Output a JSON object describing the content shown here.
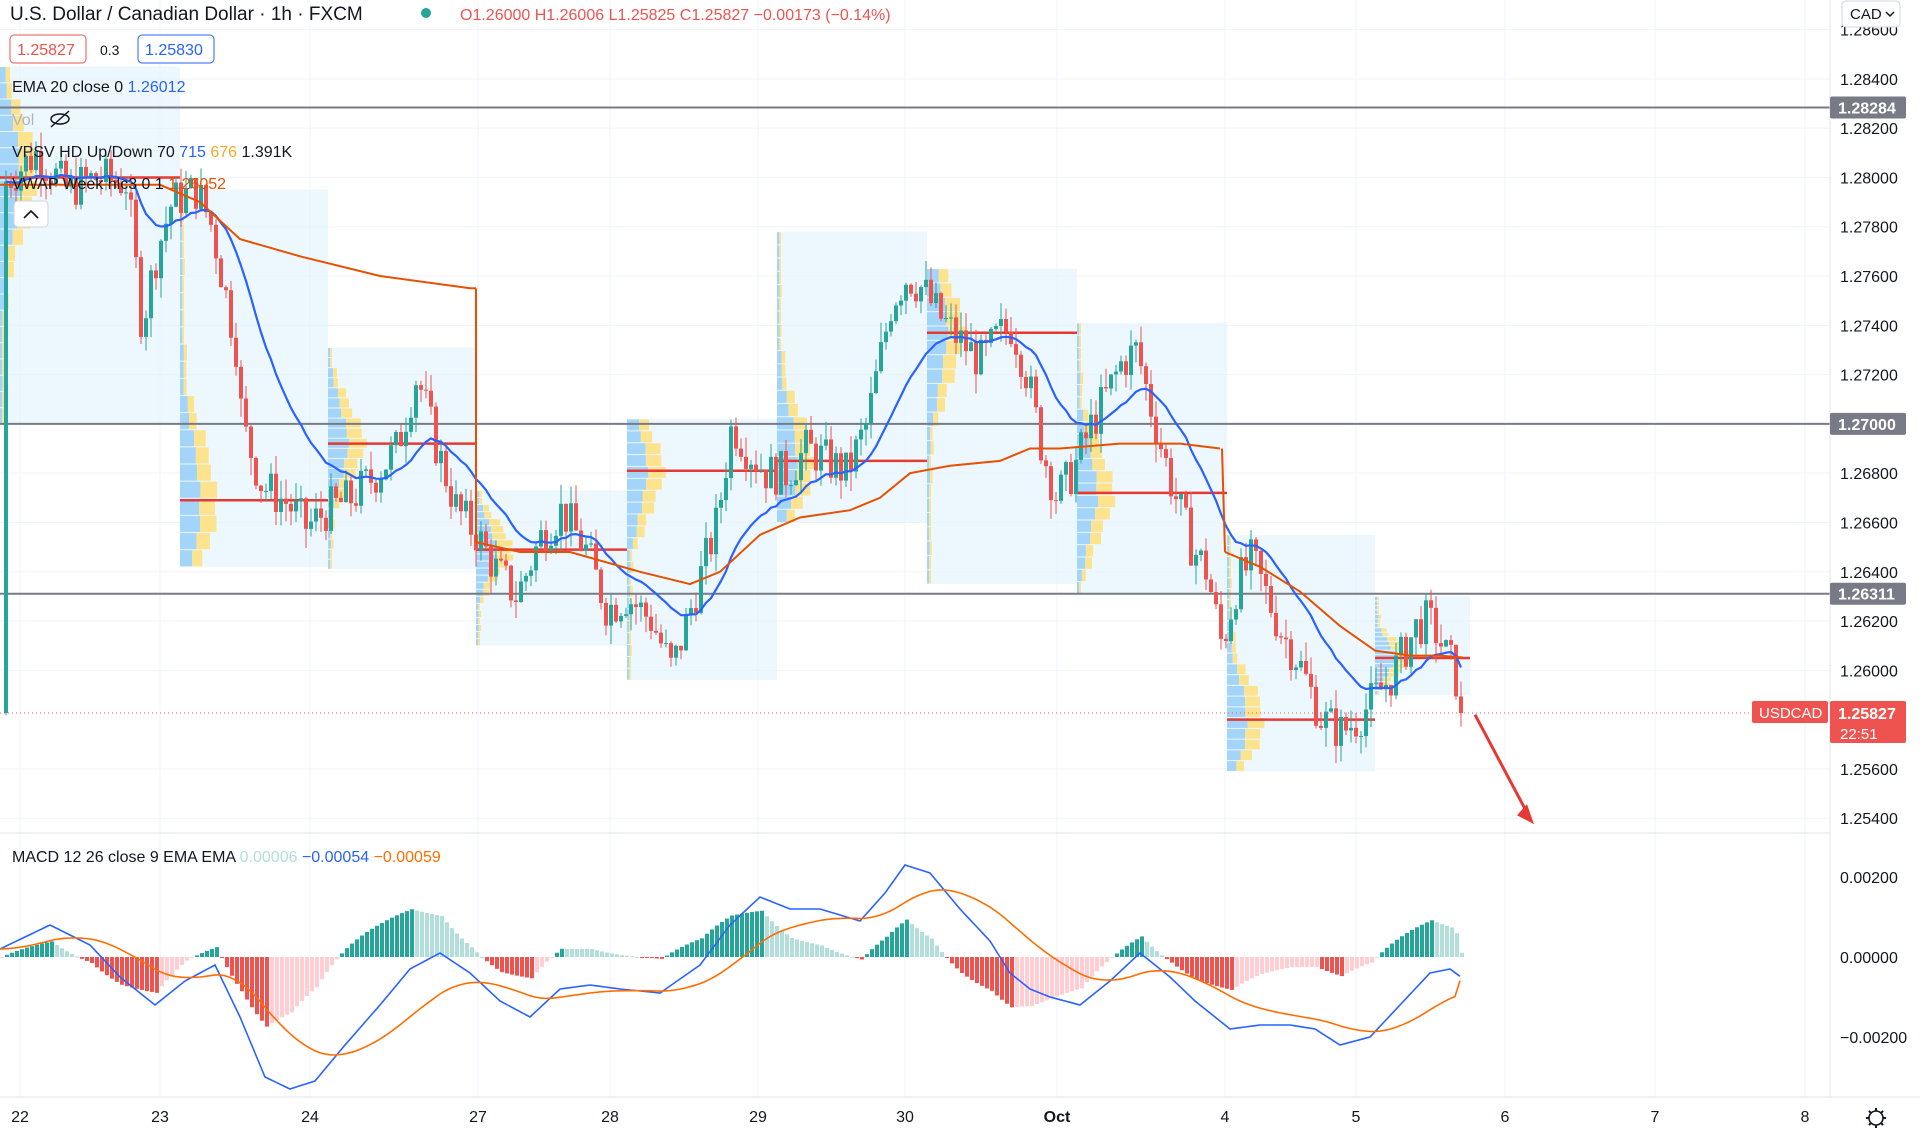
{
  "header": {
    "symbol_title": "U.S. Dollar / Canadian Dollar",
    "interval": "1h",
    "exchange": "FXCM",
    "ohlc": {
      "o": "O1.26000",
      "h": "H1.26006",
      "l": "L1.25825",
      "c": "C1.25827",
      "change": "−0.00173 (−0.14%)"
    },
    "sell_price": "1.25827",
    "spread": "0.3",
    "buy_price": "1.25830",
    "currency_button": "CAD"
  },
  "indicators": {
    "ema": {
      "name": "EMA 20 close 0",
      "value": "1.26012"
    },
    "vol": {
      "name": "Vol"
    },
    "vpsv": {
      "name": "VPSV HD Up/Down 70",
      "up": "715",
      "down": "676",
      "total": "1.391K"
    },
    "vwap": {
      "name": "VWAP Week hlc3 0 1",
      "value": "1.26052"
    },
    "macd": {
      "name": "MACD 12 26 close 9 EMA EMA",
      "hist": "0.00006",
      "macd": "−0.00054",
      "signal": "−0.00059"
    }
  },
  "price_axis": {
    "ticks": [
      "1.28600",
      "1.28400",
      "1.28200",
      "1.28000",
      "1.27800",
      "1.27600",
      "1.27400",
      "1.27200",
      "1.27000",
      "1.26800",
      "1.26600",
      "1.26400",
      "1.26200",
      "1.26000",
      "1.25600",
      "1.25400"
    ],
    "levels": [
      {
        "label": "1.28284",
        "value": 1.28284
      },
      {
        "label": "1.27000",
        "value": 1.27
      },
      {
        "label": "1.26311",
        "value": 1.26311
      }
    ],
    "current": {
      "symbol": "USDCAD",
      "price": "1.25827",
      "countdown": "22:51",
      "value": 1.25827
    }
  },
  "macd_axis": {
    "ticks": [
      "0.00200",
      "0.00000",
      "−0.00200"
    ]
  },
  "time_axis": {
    "labels": [
      "22",
      "23",
      "24",
      "27",
      "28",
      "29",
      "30",
      "Oct",
      "4",
      "5",
      "6",
      "7",
      "8"
    ]
  },
  "colors": {
    "up": "#26a69a",
    "down": "#ef5350",
    "ema": "#2962ff",
    "vwap": "#e65100",
    "level": "#787b86",
    "poc": "#e53935",
    "profile_bg": "#e3f2fd",
    "macd_line": "#2962ff",
    "signal_line": "#ff6d00"
  },
  "chart_data": {
    "type": "candlestick",
    "ylim": [
      1.2534,
      1.2872
    ],
    "x_labels": [
      "22",
      "23",
      "24",
      "27",
      "28",
      "29",
      "30",
      "Oct",
      "4",
      "5",
      "6",
      "7",
      "8"
    ],
    "ema20_last": 1.26012,
    "vwap_last": 1.26052,
    "macd_ylim": [
      -0.0035,
      0.0031
    ],
    "last_close": 1.25827
  }
}
